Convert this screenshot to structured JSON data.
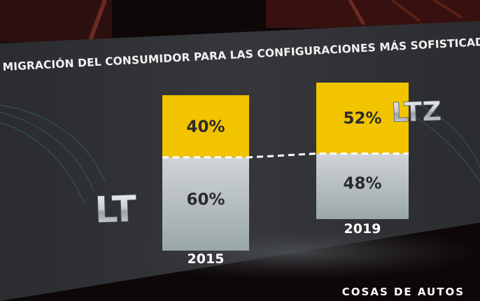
{
  "slide": {
    "title": "MIGRACIÓN DEL CONSUMIDOR PARA LAS CONFIGURACIONES MÁS SOFISTICADAS",
    "watermark": "COSAS DE AUTOS",
    "colors": {
      "top_segment": "#f2c400",
      "bottom_segment": "#c3c8cd",
      "screen": "#2e2f33",
      "divider": "#ffffff"
    }
  },
  "chart_data": {
    "type": "bar",
    "stacked": true,
    "percent": true,
    "categories": [
      "2015",
      "2019"
    ],
    "series": [
      {
        "name": "LT",
        "values": [
          60,
          48
        ],
        "labels": [
          "60%",
          "48%"
        ],
        "color": "#c3c8cd"
      },
      {
        "name": "LTZ",
        "values": [
          40,
          52
        ],
        "labels": [
          "40%",
          "52%"
        ],
        "color": "#f2c400"
      }
    ],
    "title": "MIGRACIÓN DEL CONSUMIDOR PARA LAS CONFIGURACIONES MÁS SOFISTICADAS",
    "xlabel": "",
    "ylabel": "",
    "ylim": [
      0,
      100
    ],
    "grid": false,
    "legend": "inline"
  }
}
